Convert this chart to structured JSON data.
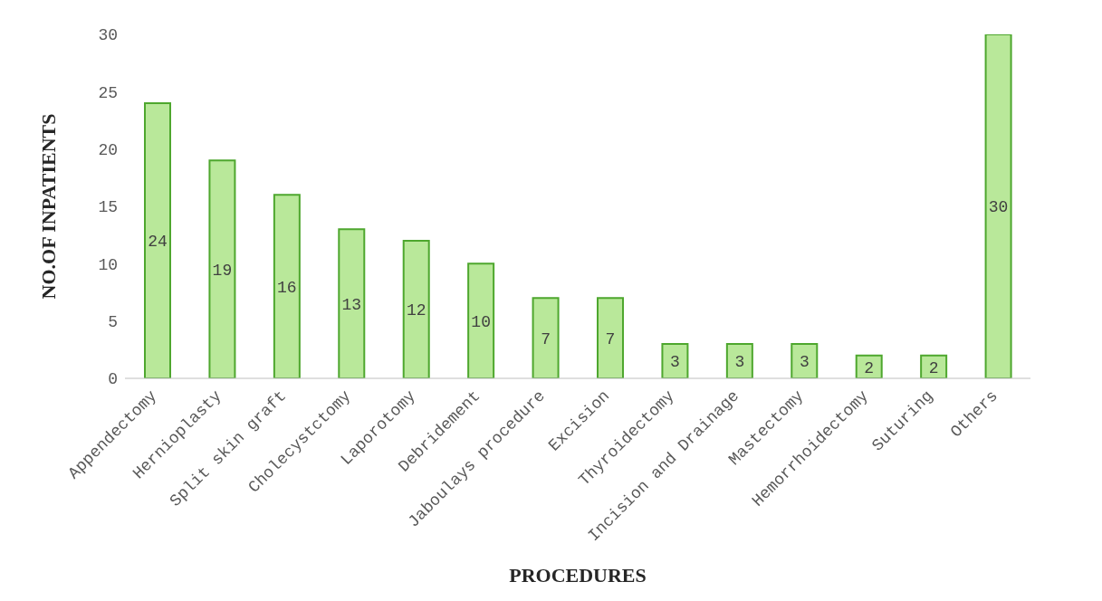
{
  "chart_data": {
    "type": "bar",
    "xlabel": "PROCEDURES",
    "ylabel": "NO.OF INPATIENTS",
    "categories": [
      "Appendectomy",
      "Hernioplasty",
      "Split skin graft",
      "Cholecystctomy",
      "Laporotomy",
      "Debridement",
      "Jaboulays procedure",
      "Excision",
      "Thyroidectomy",
      "Incision and Drainage",
      "Mastectomy",
      "Hemorrhoidectomy",
      "Suturing",
      "Others"
    ],
    "values": [
      24,
      19,
      16,
      13,
      12,
      10,
      7,
      7,
      3,
      3,
      3,
      2,
      2,
      30
    ],
    "color": "#b9e89a",
    "ylim": [
      0,
      30
    ],
    "yticks": [
      0,
      5,
      10,
      15,
      20,
      25,
      30
    ],
    "data_labels": true
  }
}
